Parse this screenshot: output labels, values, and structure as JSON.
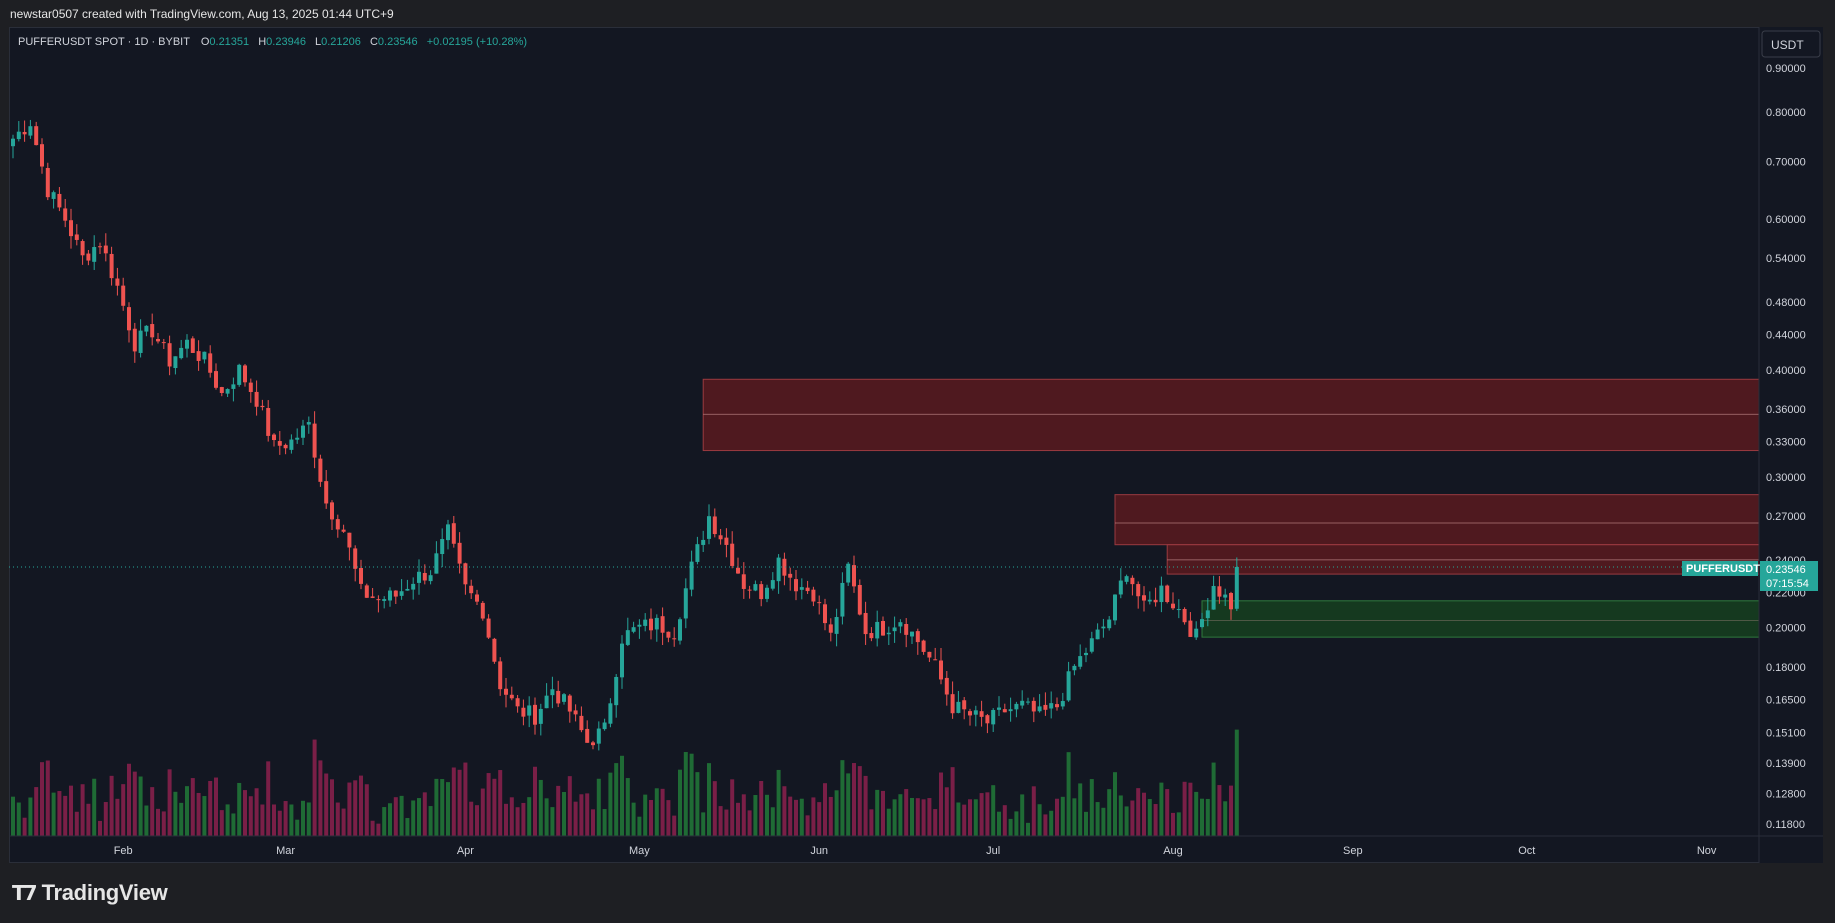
{
  "header": {
    "attribution": "newstar0507 created with TradingView.com, Aug 13, 2025 01:44 UTC+9"
  },
  "legend": {
    "symbol": "PUFFERUSDT SPOT · 1D · BYBIT",
    "o_label": "O",
    "o_value": "0.21351",
    "h_label": "H",
    "h_value": "0.23946",
    "l_label": "L",
    "l_value": "0.21206",
    "c_label": "C",
    "c_value": "0.23546",
    "change": "+0.02195 (+10.28%)"
  },
  "currency_button": "USDT",
  "price_tag": {
    "symbol": "PUFFERUSDT",
    "price": "0.23546",
    "countdown": "07:15:54"
  },
  "footer": {
    "logo_text": "TradingView",
    "logo_mark_icon": "tradingview-logo-icon"
  },
  "colors": {
    "background": "#131722",
    "up": "#26a69a",
    "down": "#ef5350",
    "volume_up": "#1f6b35",
    "volume_down": "#7a1f47",
    "supply_zone": "#5a1a1f",
    "demand_zone": "#16401e"
  },
  "chart_data": {
    "type": "candlestick",
    "symbol": "PUFFERUSDT",
    "exchange": "BYBIT",
    "interval": "1D",
    "y_scale": "log",
    "y_ticks": [
      "0.90000",
      "0.80000",
      "0.70000",
      "0.60000",
      "0.54000",
      "0.48000",
      "0.44000",
      "0.40000",
      "0.36000",
      "0.33000",
      "0.30000",
      "0.27000",
      "0.24000",
      "0.22000",
      "0.20000",
      "0.18000",
      "0.16500",
      "0.15100",
      "0.13900",
      "0.12800",
      "0.11800"
    ],
    "x_ticks": [
      "Feb",
      "Mar",
      "Apr",
      "May",
      "Jun",
      "Jul",
      "Aug",
      "Sep",
      "Oct",
      "Nov"
    ],
    "x_range": [
      "2025-01-13",
      "2025-11-13"
    ],
    "last_close": 0.23546,
    "zones": [
      {
        "kind": "supply",
        "from": "2025-05-12",
        "top": 0.39,
        "bottom": 0.322,
        "midline": 0.355
      },
      {
        "kind": "supply",
        "from": "2025-07-22",
        "top": 0.286,
        "bottom": 0.25,
        "midline": 0.265
      },
      {
        "kind": "supply",
        "from": "2025-07-31",
        "top": 0.25,
        "bottom": 0.231,
        "midline": 0.24
      },
      {
        "kind": "demand",
        "from": "2025-08-06",
        "top": 0.215,
        "bottom": 0.195,
        "midline": 0.204
      }
    ],
    "anchors": [
      [
        "2025-01-13",
        0.745
      ],
      [
        "2025-01-16",
        0.78
      ],
      [
        "2025-01-19",
        0.65
      ],
      [
        "2025-01-22",
        0.6
      ],
      [
        "2025-01-25",
        0.54
      ],
      [
        "2025-01-28",
        0.565
      ],
      [
        "2025-01-31",
        0.5
      ],
      [
        "2025-02-03",
        0.43
      ],
      [
        "2025-02-06",
        0.445
      ],
      [
        "2025-02-09",
        0.41
      ],
      [
        "2025-02-12",
        0.43
      ],
      [
        "2025-02-15",
        0.41
      ],
      [
        "2025-02-18",
        0.375
      ],
      [
        "2025-02-21",
        0.4
      ],
      [
        "2025-02-24",
        0.37
      ],
      [
        "2025-02-27",
        0.325
      ],
      [
        "2025-03-02",
        0.33
      ],
      [
        "2025-03-05",
        0.345
      ],
      [
        "2025-03-08",
        0.28
      ],
      [
        "2025-03-11",
        0.26
      ],
      [
        "2025-03-14",
        0.22
      ],
      [
        "2025-03-17",
        0.216
      ],
      [
        "2025-03-20",
        0.218
      ],
      [
        "2025-03-23",
        0.228
      ],
      [
        "2025-03-26",
        0.233
      ],
      [
        "2025-03-29",
        0.258
      ],
      [
        "2025-04-01",
        0.222
      ],
      [
        "2025-04-04",
        0.21
      ],
      [
        "2025-04-07",
        0.172
      ],
      [
        "2025-04-10",
        0.16
      ],
      [
        "2025-04-13",
        0.158
      ],
      [
        "2025-04-16",
        0.17
      ],
      [
        "2025-04-19",
        0.16
      ],
      [
        "2025-04-22",
        0.147
      ],
      [
        "2025-04-25",
        0.152
      ],
      [
        "2025-04-28",
        0.195
      ],
      [
        "2025-05-01",
        0.2
      ],
      [
        "2025-05-04",
        0.202
      ],
      [
        "2025-05-07",
        0.198
      ],
      [
        "2025-05-10",
        0.235
      ],
      [
        "2025-05-13",
        0.27
      ],
      [
        "2025-05-16",
        0.25
      ],
      [
        "2025-05-19",
        0.225
      ],
      [
        "2025-05-22",
        0.22
      ],
      [
        "2025-05-25",
        0.24
      ],
      [
        "2025-05-28",
        0.225
      ],
      [
        "2025-05-31",
        0.22
      ],
      [
        "2025-06-03",
        0.195
      ],
      [
        "2025-06-06",
        0.235
      ],
      [
        "2025-06-09",
        0.198
      ],
      [
        "2025-06-12",
        0.2
      ],
      [
        "2025-06-15",
        0.205
      ],
      [
        "2025-06-18",
        0.193
      ],
      [
        "2025-06-21",
        0.18
      ],
      [
        "2025-06-24",
        0.162
      ],
      [
        "2025-06-27",
        0.158
      ],
      [
        "2025-06-30",
        0.155
      ],
      [
        "2025-07-03",
        0.16
      ],
      [
        "2025-07-06",
        0.162
      ],
      [
        "2025-07-09",
        0.158
      ],
      [
        "2025-07-12",
        0.162
      ],
      [
        "2025-07-15",
        0.18
      ],
      [
        "2025-07-18",
        0.192
      ],
      [
        "2025-07-21",
        0.205
      ],
      [
        "2025-07-24",
        0.235
      ],
      [
        "2025-07-27",
        0.21
      ],
      [
        "2025-07-30",
        0.222
      ],
      [
        "2025-08-02",
        0.21
      ],
      [
        "2025-08-05",
        0.195
      ],
      [
        "2025-08-08",
        0.225
      ],
      [
        "2025-08-11",
        0.213
      ],
      [
        "2025-08-12",
        0.235
      ]
    ]
  }
}
